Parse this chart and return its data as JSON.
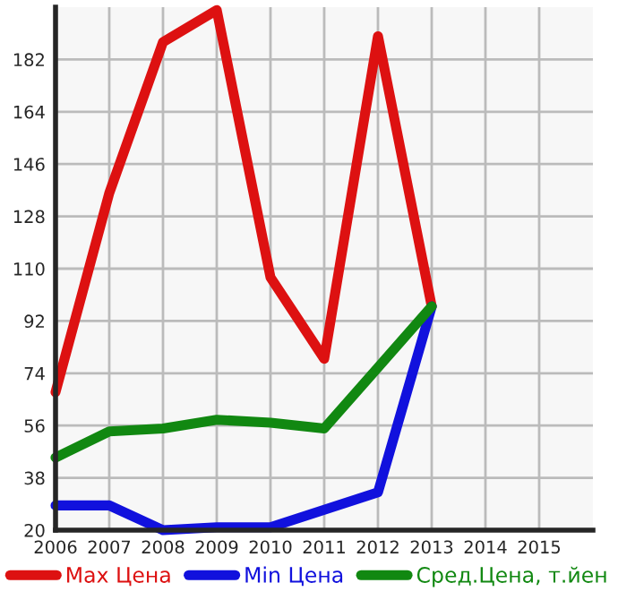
{
  "chart_data": {
    "type": "line",
    "x": [
      2006,
      2007,
      2008,
      2009,
      2010,
      2011,
      2012,
      2013
    ],
    "series": [
      {
        "name": "Max Цена",
        "color": "#dd1111",
        "values": [
          67.5,
          136,
          188,
          199,
          107,
          79,
          190,
          97
        ]
      },
      {
        "name": "Min Цена",
        "color": "#1111dd",
        "values": [
          28.5,
          28.5,
          20,
          21,
          21,
          27,
          33,
          97
        ]
      },
      {
        "name": "Сред.Цена, т.йен",
        "color": "#118811",
        "values": [
          45,
          54,
          55,
          58,
          57,
          55,
          76,
          97
        ]
      }
    ],
    "xlim": [
      2006,
      2016
    ],
    "xticks": [
      2006,
      2007,
      2008,
      2009,
      2010,
      2011,
      2012,
      2013,
      2014,
      2015
    ],
    "ylim": [
      20,
      200
    ],
    "yticks": [
      20,
      38,
      56,
      74,
      92,
      110,
      128,
      146,
      164,
      182
    ],
    "grid": true,
    "legend": "bottom",
    "marker": "none",
    "line_style": "solid"
  }
}
